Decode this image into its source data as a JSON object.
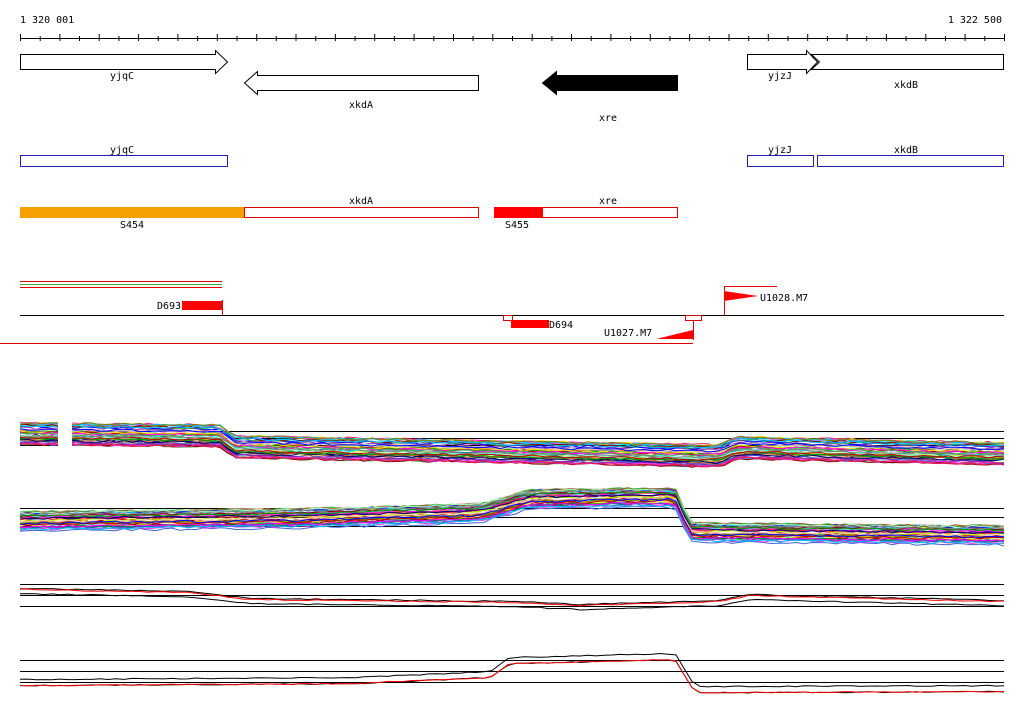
{
  "ruler": {
    "start_label": "1 320 001",
    "end_label": "1 322 500",
    "start": 1320001,
    "end": 1322500
  },
  "genes": [
    {
      "id": "gene-yjqC",
      "label": "yjqC",
      "start": 1320001,
      "end": 1320530,
      "strand": "+",
      "filled": false
    },
    {
      "id": "gene-xkdA",
      "label": "xkdA",
      "start": 1320570,
      "end": 1321170,
      "strand": "-",
      "filled": false
    },
    {
      "id": "gene-xre",
      "label": "xre",
      "start": 1321380,
      "end": 1321670,
      "strand": "-",
      "filled": true
    },
    {
      "id": "gene-yjzJ",
      "label": "yjzJ",
      "start": 1321850,
      "end": 1322020,
      "strand": "+",
      "filled": false
    },
    {
      "id": "gene-xkdB",
      "label": "xkdB",
      "start": 1322020,
      "end": 1322500,
      "strand": "+",
      "filled": false
    }
  ],
  "cds_track": [
    {
      "label": "yjqC"
    },
    {
      "label": "yjzJ"
    },
    {
      "label": "xkdB"
    }
  ],
  "segment_track": [
    {
      "label": "xkdA"
    },
    {
      "label": "xre"
    },
    {
      "label": "S454"
    },
    {
      "label": "S455"
    }
  ],
  "features": [
    {
      "label": "D693"
    },
    {
      "label": "D694"
    },
    {
      "label": "U1027.M7"
    },
    {
      "label": "U1028.M7"
    }
  ],
  "colors": {
    "gene_fill": "#000000",
    "cds_outline": "#1f1fa8",
    "segment_outline": "#e00000",
    "segment_S454": "#f5a000",
    "feature_red": "#ff0000",
    "green_line": "#3caa3c"
  }
}
